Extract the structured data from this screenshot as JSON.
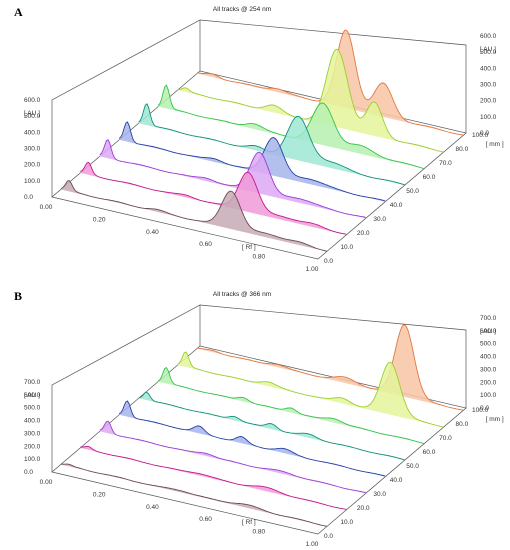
{
  "figure": {
    "panel_a_label": "A",
    "panel_b_label": "B"
  },
  "chart_data": [
    {
      "type": "line",
      "panel": "A",
      "title": "All tracks @ 254 nm",
      "rf_label": "[ Rf ]",
      "track_axis_label": "[ mm ]",
      "au_label": "[ AU ]",
      "rf_ticks": [
        "0.00",
        "0.20",
        "0.40",
        "0.60",
        "0.80",
        "1.00"
      ],
      "track_ticks": [
        "0.0",
        "10.0",
        "20.0",
        "30.0",
        "40.0",
        "50.0",
        "60.0",
        "70.0",
        "80.0",
        "100.0"
      ],
      "left_au_ticks": [
        "0.0",
        "100.0",
        "200.0",
        "300.0",
        "400.0",
        "500.0",
        "600.0"
      ],
      "right_au_ticks": [
        "0.0",
        "100.0",
        "200.0",
        "300.0",
        "400.0",
        "500.0",
        "600.0"
      ],
      "xlim": [
        0,
        1
      ],
      "ylim": [
        0,
        600
      ],
      "series": [
        {
          "color": "#6b4a4f",
          "fill": "#c5aab6",
          "peaks": [
            [
              0.03,
              60,
              0.012
            ],
            [
              0.36,
              10,
              0.03
            ],
            [
              0.64,
              230,
              0.035
            ],
            [
              0.78,
              22,
              0.05
            ],
            [
              0.9,
              12,
              0.04
            ]
          ]
        },
        {
          "color": "#c2188c",
          "fill": "#f09ad8",
          "peaks": [
            [
              0.03,
              70,
              0.012
            ],
            [
              0.4,
              12,
              0.03
            ],
            [
              0.63,
              240,
              0.035
            ],
            [
              0.76,
              20,
              0.05
            ],
            [
              0.88,
              15,
              0.04
            ]
          ]
        },
        {
          "color": "#9b3cd4",
          "fill": "#dca8f5",
          "peaks": [
            [
              0.03,
              110,
              0.012
            ],
            [
              0.4,
              18,
              0.03
            ],
            [
              0.6,
              250,
              0.035
            ],
            [
              0.75,
              25,
              0.05
            ]
          ]
        },
        {
          "color": "#2440a8",
          "fill": "#a6b4ea",
          "peaks": [
            [
              0.03,
              120,
              0.012
            ],
            [
              0.36,
              18,
              0.03
            ],
            [
              0.58,
              230,
              0.035
            ],
            [
              0.72,
              30,
              0.05
            ]
          ]
        },
        {
          "color": "#0f8f78",
          "fill": "#9ee8d2",
          "peaks": [
            [
              0.03,
              130,
              0.012
            ],
            [
              0.44,
              22,
              0.03
            ],
            [
              0.6,
              260,
              0.04
            ],
            [
              0.72,
              35,
              0.05
            ]
          ]
        },
        {
          "color": "#33c24a",
          "fill": "#b7f0b0",
          "peaks": [
            [
              0.03,
              140,
              0.012
            ],
            [
              0.36,
              30,
              0.03
            ],
            [
              0.62,
              250,
              0.04
            ],
            [
              0.76,
              45,
              0.05
            ]
          ]
        },
        {
          "color": "#9ccc30",
          "fill": "#e4f59a",
          "peaks": [
            [
              0.03,
              20,
              0.012
            ],
            [
              0.36,
              40,
              0.03
            ],
            [
              0.6,
              470,
              0.04
            ],
            [
              0.74,
              200,
              0.03
            ]
          ]
        },
        {
          "color": "#e07840",
          "fill": "#f8c4a4",
          "peaks": [
            [
              0.06,
              15,
              0.02
            ],
            [
              0.3,
              20,
              0.03
            ],
            [
              0.56,
              470,
              0.035
            ],
            [
              0.7,
              200,
              0.035
            ]
          ]
        }
      ]
    },
    {
      "type": "line",
      "panel": "B",
      "title": "All tracks @ 366 nm",
      "rf_label": "[ Rf ]",
      "track_axis_label": "[ mm ]",
      "au_label": "[ AU ]",
      "rf_ticks": [
        "0.00",
        "0.20",
        "0.40",
        "0.60",
        "0.80",
        "1.00"
      ],
      "track_ticks": [
        "0.0",
        "10.0",
        "20.0",
        "30.0",
        "40.0",
        "50.0",
        "60.0",
        "70.0",
        "80.0",
        "100.0"
      ],
      "left_au_ticks": [
        "0.0",
        "100.0",
        "200.0",
        "300.0",
        "400.0",
        "500.0",
        "600.0",
        "700.0"
      ],
      "right_au_ticks": [
        "0.0",
        "100.0",
        "200.0",
        "300.0",
        "400.0",
        "500.0",
        "600.0",
        "700.0"
      ],
      "xlim": [
        0,
        1
      ],
      "ylim": [
        0,
        700
      ],
      "series": [
        {
          "color": "#6b4a4f",
          "fill": "#c5aab6",
          "peaks": [
            [
              0.03,
              10,
              0.012
            ],
            [
              0.45,
              12,
              0.04
            ],
            [
              0.7,
              20,
              0.05
            ]
          ]
        },
        {
          "color": "#c2188c",
          "fill": "#f09ad8",
          "peaks": [
            [
              0.03,
              20,
              0.012
            ],
            [
              0.45,
              15,
              0.04
            ],
            [
              0.7,
              25,
              0.05
            ]
          ]
        },
        {
          "color": "#9b3cd4",
          "fill": "#dca8f5",
          "peaks": [
            [
              0.03,
              90,
              0.012
            ],
            [
              0.4,
              20,
              0.03
            ],
            [
              0.68,
              15,
              0.05
            ]
          ]
        },
        {
          "color": "#2440a8",
          "fill": "#a6b4ea",
          "peaks": [
            [
              0.03,
              120,
              0.012
            ],
            [
              0.3,
              50,
              0.02
            ],
            [
              0.46,
              45,
              0.02
            ],
            [
              0.62,
              30,
              0.03
            ]
          ]
        },
        {
          "color": "#0f8f78",
          "fill": "#9ee8d2",
          "peaks": [
            [
              0.03,
              60,
              0.012
            ],
            [
              0.36,
              30,
              0.02
            ],
            [
              0.5,
              40,
              0.02
            ],
            [
              0.64,
              25,
              0.03
            ]
          ]
        },
        {
          "color": "#33c24a",
          "fill": "#b7f0b0",
          "peaks": [
            [
              0.03,
              120,
              0.012
            ],
            [
              0.32,
              30,
              0.02
            ],
            [
              0.5,
              35,
              0.02
            ],
            [
              0.66,
              30,
              0.03
            ]
          ]
        },
        {
          "color": "#9ccc30",
          "fill": "#e4f59a",
          "peaks": [
            [
              0.03,
              110,
              0.012
            ],
            [
              0.34,
              30,
              0.03
            ],
            [
              0.62,
              40,
              0.03
            ],
            [
              0.8,
              400,
              0.035
            ]
          ]
        },
        {
          "color": "#e07840",
          "fill": "#f8c4a4",
          "peaks": [
            [
              0.06,
              10,
              0.02
            ],
            [
              0.3,
              20,
              0.03
            ],
            [
              0.56,
              40,
              0.04
            ],
            [
              0.78,
              550,
              0.035
            ]
          ]
        }
      ]
    }
  ]
}
